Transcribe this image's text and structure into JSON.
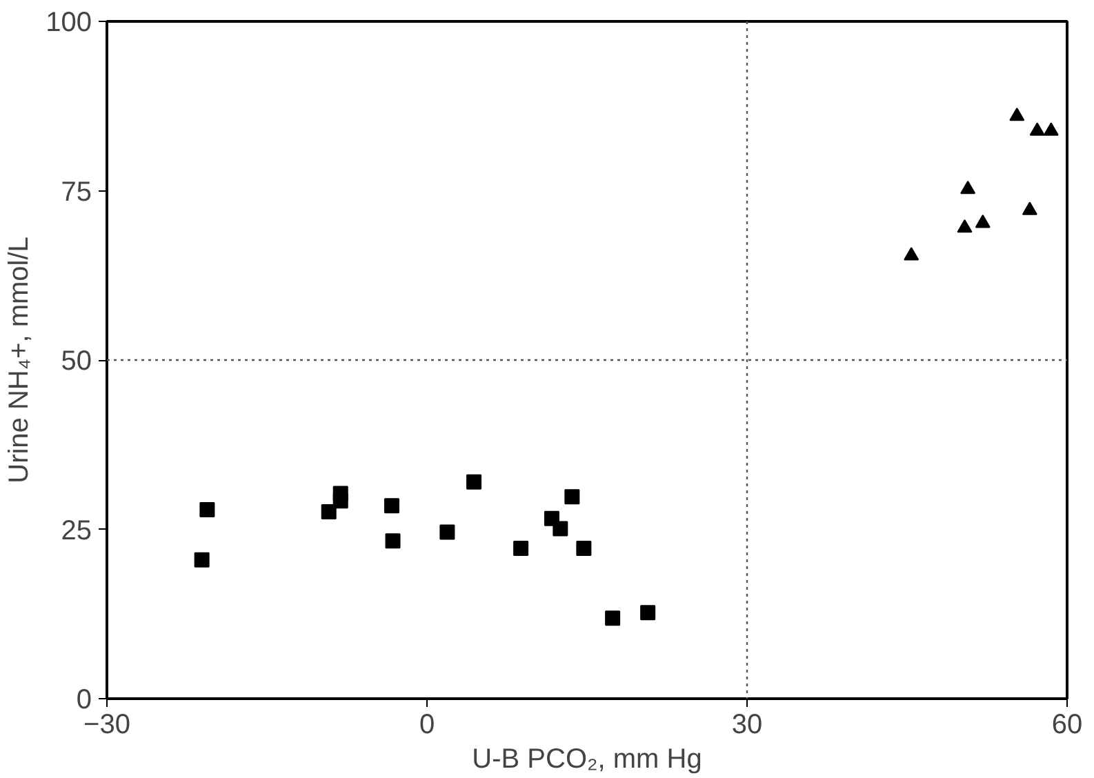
{
  "chart_data": {
    "type": "scatter",
    "xlabel": "U-B PCO₂, mm Hg",
    "ylabel": "Urine NH₄+, mmol/L",
    "xlim": [
      -30,
      60
    ],
    "ylim": [
      0,
      100
    ],
    "xticks": [
      -30,
      0,
      30,
      60
    ],
    "yticks": [
      0,
      25,
      50,
      75,
      100
    ],
    "grid": false,
    "series": [
      {
        "color": "#000000",
        "marker": "square",
        "x": [
          -21.1,
          -20.6,
          -9.2,
          -8.1,
          -8.1,
          -3.3,
          -3.2,
          1.9,
          4.4,
          8.8,
          11.7,
          12.5,
          13.6,
          14.7,
          17.4,
          20.7
        ],
        "values": [
          20.5,
          27.9,
          27.6,
          30.3,
          29.2,
          28.5,
          23.3,
          24.6,
          32.0,
          22.2,
          26.6,
          25.1,
          29.8,
          22.2,
          11.9,
          12.7
        ]
      },
      {
        "color": "#000000",
        "marker": "triangle",
        "x": [
          45.4,
          50.4,
          50.7,
          52.1,
          56.5,
          55.3,
          57.2,
          58.5
        ],
        "values": [
          65.4,
          69.5,
          75.2,
          70.2,
          72.1,
          86.0,
          83.8,
          83.8
        ]
      }
    ],
    "ref_lines": [
      {
        "axis": "x",
        "value": 30,
        "line_style": "dotted",
        "color": "#555555"
      },
      {
        "axis": "y",
        "value": 50,
        "line_style": "dotted",
        "color": "#555555"
      }
    ]
  }
}
